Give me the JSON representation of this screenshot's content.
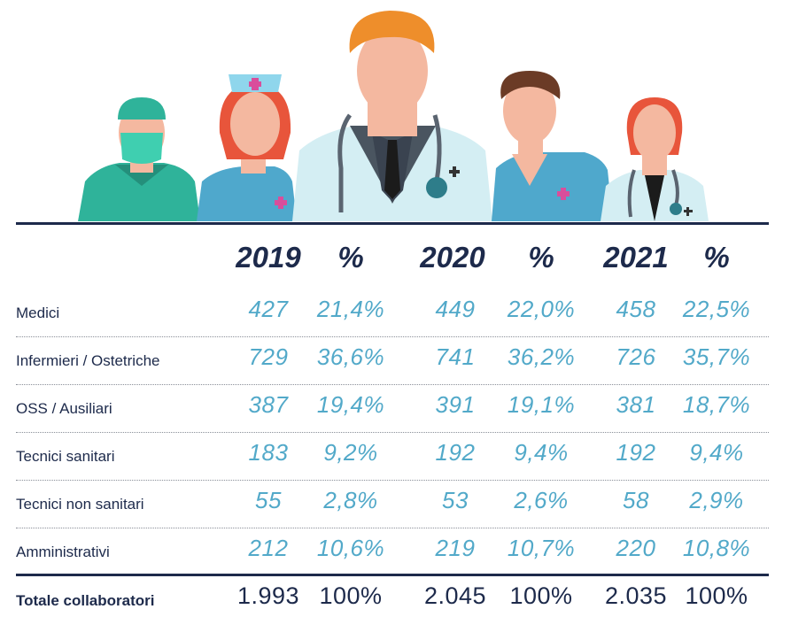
{
  "headers": [
    "2019",
    "%",
    "2020",
    "%",
    "2021",
    "%"
  ],
  "rows": [
    {
      "label": "Medici",
      "values": [
        "427",
        "21,4%",
        "449",
        "22,0%",
        "458",
        "22,5%"
      ]
    },
    {
      "label": "Infermieri / Ostetriche",
      "values": [
        "729",
        "36,6%",
        "741",
        "36,2%",
        "726",
        "35,7%"
      ]
    },
    {
      "label": "OSS / Ausiliari",
      "values": [
        "387",
        "19,4%",
        "391",
        "19,1%",
        "381",
        "18,7%"
      ]
    },
    {
      "label": "Tecnici sanitari",
      "values": [
        "183",
        "9,2%",
        "192",
        "9,4%",
        "192",
        "9,4%"
      ]
    },
    {
      "label": "Tecnici non sanitari",
      "values": [
        "55",
        "2,8%",
        "53",
        "2,6%",
        "58",
        "2,9%"
      ]
    },
    {
      "label": "Amministrativi",
      "values": [
        "212",
        "10,6%",
        "219",
        "10,7%",
        "220",
        "10,8%"
      ]
    }
  ],
  "total": {
    "label": "Totale collaboratori",
    "values": [
      "1.993",
      "100%",
      "2.045",
      "100%",
      "2.035",
      "100%"
    ]
  },
  "colors": {
    "navy": "#1d2a4b",
    "value_blue": "#52a9c9",
    "teal": "#2fb39a",
    "nurse_blue": "#4fa8cc"
  },
  "illustration_icons": [
    "surgeon-figure",
    "nurse-figure",
    "doctor-figure",
    "male-nurse-figure",
    "female-doctor-figure"
  ]
}
